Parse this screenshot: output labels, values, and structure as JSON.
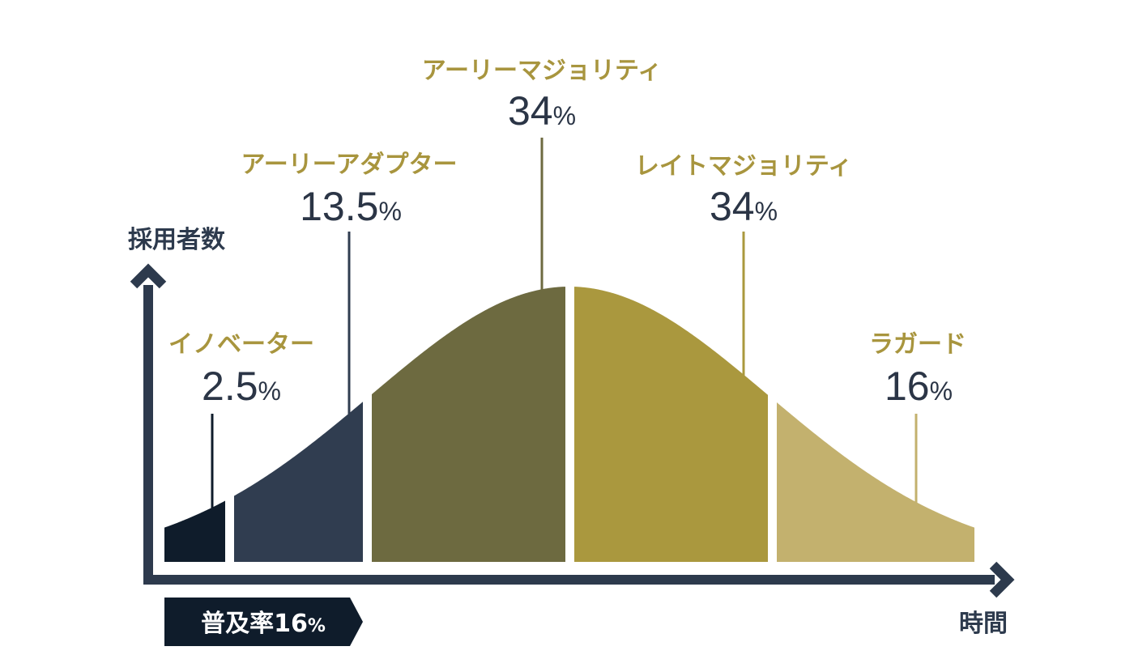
{
  "diagram": {
    "y_axis_label": "採用者数",
    "x_axis_label": "時間",
    "badge": {
      "label": "普及率16",
      "unit": "%"
    },
    "segments": [
      {
        "name": "イノベーター",
        "value": "2.5",
        "unit": "%",
        "color": "#0f1c2b",
        "label_color": "#a8953e"
      },
      {
        "name": "アーリーアダプター",
        "value": "13.5",
        "unit": "%",
        "color": "#303d50",
        "label_color": "#a8953e"
      },
      {
        "name": "アーリーマジョリティ",
        "value": "34",
        "unit": "%",
        "color": "#6d6a40",
        "label_color": "#a8953e"
      },
      {
        "name": "レイトマジョリティ",
        "value": "34",
        "unit": "%",
        "color": "#aa983e",
        "label_color": "#a8953e"
      },
      {
        "name": "ラガード",
        "value": "16",
        "unit": "%",
        "color": "#c3b16e",
        "label_color": "#a8953e"
      }
    ],
    "colors": {
      "axis": "#2d3a4d",
      "value_text": "#2b3546",
      "badge_bg": "#0f1c2b",
      "badge_text": "#ffffff",
      "accent_gold": "#a8953e"
    }
  }
}
